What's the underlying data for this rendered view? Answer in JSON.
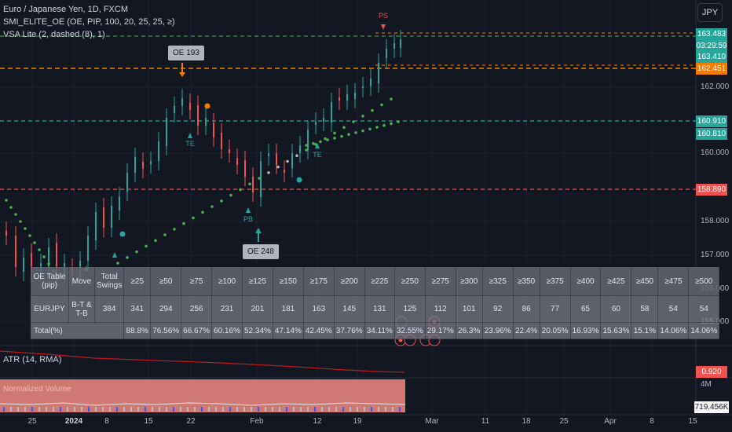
{
  "symbol_title": "Euro / Japanese Yen, 1D, FXCM",
  "indicators": {
    "smi": "SMI_ELITE_OE (OE, PIP, 100, 20, 25, 25, ≥)",
    "vsa": "VSA Lite (2, dashed (8), 1)",
    "atr": "ATR (14, RMA)",
    "volume": "Normalized Volume"
  },
  "currency_button": "JPY",
  "price_tags": {
    "high": "163.483",
    "countdown": "03:29:59",
    "last": "163.410",
    "orange": "162.451",
    "teal1": "160.910",
    "teal2": "160.810",
    "red": "158.890",
    "atr": "0.920",
    "vol_scale": "4M",
    "volume": "719.456K"
  },
  "y_ticks": [
    "162.000",
    "160.000",
    "158.000",
    "157.000",
    "156.000",
    "155.000"
  ],
  "x_ticks": [
    "25",
    "2024",
    "8",
    "15",
    "22",
    "Feb",
    "12",
    "19",
    "Mar",
    "11",
    "18",
    "25",
    "Apr",
    "8",
    "15"
  ],
  "callouts": {
    "oe193": "OE 193",
    "oe248": "OE 248"
  },
  "markers": {
    "ps": "PS",
    "te": "TE",
    "pb": "PB"
  },
  "colors": {
    "background": "#131722",
    "up": "#26a69a",
    "down": "#ef5350",
    "orange": "#f57c00",
    "teal_line": "#26a69a",
    "red_line": "#ef5350",
    "green_line": "#4caf50",
    "dots": "#4caf50"
  },
  "oe_table": {
    "header": [
      "OE Table (pip)",
      "Move",
      "Total Swings",
      "≥25",
      "≥50",
      "≥75",
      "≥100",
      "≥125",
      "≥150",
      "≥175",
      "≥200",
      "≥225",
      "≥250",
      "≥275",
      "≥300",
      "≥325",
      "≥350",
      "≥375",
      "≥400",
      "≥425",
      "≥450",
      "≥475",
      "≥500"
    ],
    "row_symbol": [
      "EURJPY",
      "B-T & T-B",
      "384",
      "341",
      "294",
      "256",
      "231",
      "201",
      "181",
      "163",
      "145",
      "131",
      "125",
      "112",
      "101",
      "92",
      "86",
      "77",
      "65",
      "60",
      "58",
      "54",
      "54"
    ],
    "row_total": [
      "Total(%)",
      "88.8%",
      "76.56%",
      "66.67%",
      "60.16%",
      "52.34%",
      "47.14%",
      "42.45%",
      "37.76%",
      "34.11%",
      "32.55%",
      "29.17%",
      "26.3%",
      "23.96%",
      "22.4%",
      "20.05%",
      "16.93%",
      "15.63%",
      "15.1%",
      "14.06%",
      "14.06%"
    ]
  }
}
